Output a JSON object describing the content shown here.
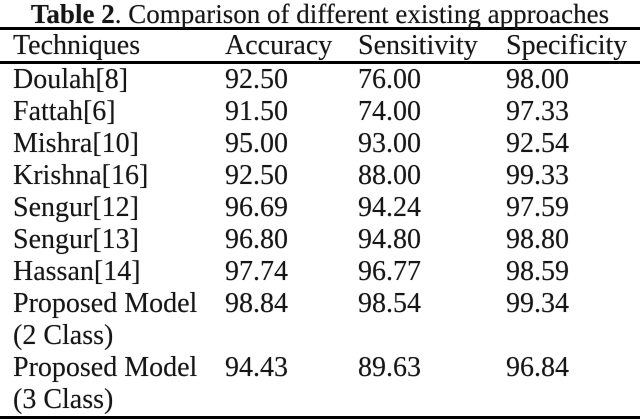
{
  "caption": {
    "label": "Table 2",
    "text": ". Comparison of different existing approaches"
  },
  "columns": [
    "Techniques",
    "Accuracy",
    "Sensitivity",
    "Specificity"
  ],
  "rows": [
    {
      "technique": "Doulah[8]",
      "note": "",
      "accuracy": "92.50",
      "sensitivity": "76.00",
      "specificity": "98.00"
    },
    {
      "technique": "Fattah[6]",
      "note": "",
      "accuracy": "91.50",
      "sensitivity": "74.00",
      "specificity": "97.33"
    },
    {
      "technique": "Mishra[10]",
      "note": "",
      "accuracy": "95.00",
      "sensitivity": "93.00",
      "specificity": "92.54"
    },
    {
      "technique": "Krishna[16]",
      "note": "",
      "accuracy": "92.50",
      "sensitivity": "88.00",
      "specificity": "99.33"
    },
    {
      "technique": "Sengur[12]",
      "note": "",
      "accuracy": "96.69",
      "sensitivity": "94.24",
      "specificity": "97.59"
    },
    {
      "technique": "Sengur[13]",
      "note": "",
      "accuracy": "96.80",
      "sensitivity": "94.80",
      "specificity": "98.80"
    },
    {
      "technique": "Hassan[14]",
      "note": "",
      "accuracy": "97.74",
      "sensitivity": "96.77",
      "specificity": "98.59"
    },
    {
      "technique": "Proposed Model",
      "note": "(2 Class)",
      "accuracy": "98.84",
      "sensitivity": "98.54",
      "specificity": "99.34"
    },
    {
      "technique": "Proposed Model",
      "note": "(3 Class)",
      "accuracy": "94.43",
      "sensitivity": "89.63",
      "specificity": "96.84"
    }
  ],
  "colors": {
    "background": "#ffffff",
    "text": "#161616",
    "rule": "#000000"
  }
}
